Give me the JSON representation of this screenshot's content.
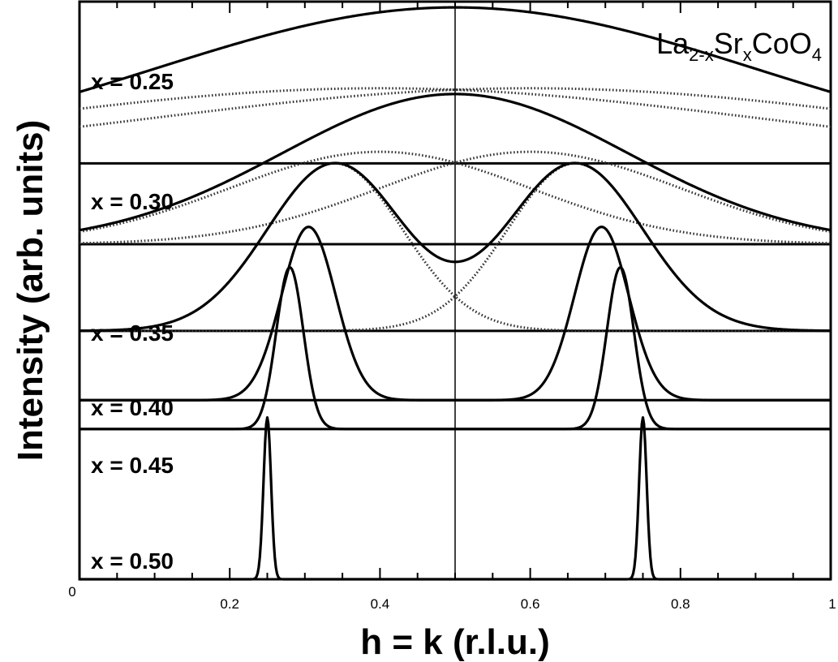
{
  "chart_data": {
    "type": "line",
    "title": {
      "parts": [
        "La",
        "2-x",
        "Sr",
        "x",
        "CoO",
        "4"
      ]
    },
    "xlabel": "h = k (r.l.u.)",
    "ylabel": "Intensity (arb. units)",
    "xlim": [
      0,
      1
    ],
    "x_ticks": [
      {
        "value": 0,
        "label": "0"
      },
      {
        "value": 0.2,
        "label": "0.2"
      },
      {
        "value": 0.4,
        "label": "0.4"
      },
      {
        "value": 0.6,
        "label": "0.6"
      },
      {
        "value": 0.8,
        "label": "0.8"
      },
      {
        "value": 1,
        "label": "1"
      }
    ],
    "reference_line_x": 0.5,
    "grid": false,
    "series": [
      {
        "label": "x = 0.25",
        "baseline": 0.72,
        "peaks": [
          {
            "center": 0.5,
            "sigma": 0.4,
            "amplitude": 0.27
          }
        ],
        "components": [
          {
            "center": 0.4,
            "sigma": 0.5,
            "amplitude": 0.13
          },
          {
            "center": 0.6,
            "sigma": 0.5,
            "amplitude": 0.13
          }
        ]
      },
      {
        "label": "x = 0.30",
        "baseline": 0.58,
        "peaks": [
          {
            "center": 0.5,
            "sigma": 0.23,
            "amplitude": 0.26
          }
        ],
        "components": [
          {
            "center": 0.4,
            "sigma": 0.2,
            "amplitude": 0.16
          },
          {
            "center": 0.6,
            "sigma": 0.2,
            "amplitude": 0.16
          }
        ]
      },
      {
        "label": "x = 0.35",
        "baseline": 0.43,
        "peaks": [
          {
            "center": 0.34,
            "sigma": 0.09,
            "amplitude": 0.29
          },
          {
            "center": 0.66,
            "sigma": 0.09,
            "amplitude": 0.29
          }
        ],
        "components": [
          {
            "center": 0.34,
            "sigma": 0.09,
            "amplitude": 0.29
          },
          {
            "center": 0.66,
            "sigma": 0.09,
            "amplitude": 0.29
          }
        ]
      },
      {
        "label": "x = 0.40",
        "baseline": 0.31,
        "peaks": [
          {
            "center": 0.305,
            "sigma": 0.036,
            "amplitude": 0.3
          },
          {
            "center": 0.695,
            "sigma": 0.036,
            "amplitude": 0.3
          }
        ],
        "components": []
      },
      {
        "label": "x = 0.45",
        "baseline": 0.26,
        "peaks": [
          {
            "center": 0.28,
            "sigma": 0.018,
            "amplitude": 0.28
          },
          {
            "center": 0.72,
            "sigma": 0.018,
            "amplitude": 0.28
          }
        ],
        "components": []
      },
      {
        "label": "x = 0.50",
        "baseline": 0.0,
        "peaks": [
          {
            "center": 0.25,
            "sigma": 0.005,
            "amplitude": 0.28
          },
          {
            "center": 0.75,
            "sigma": 0.005,
            "amplitude": 0.28
          }
        ],
        "components": []
      }
    ]
  }
}
